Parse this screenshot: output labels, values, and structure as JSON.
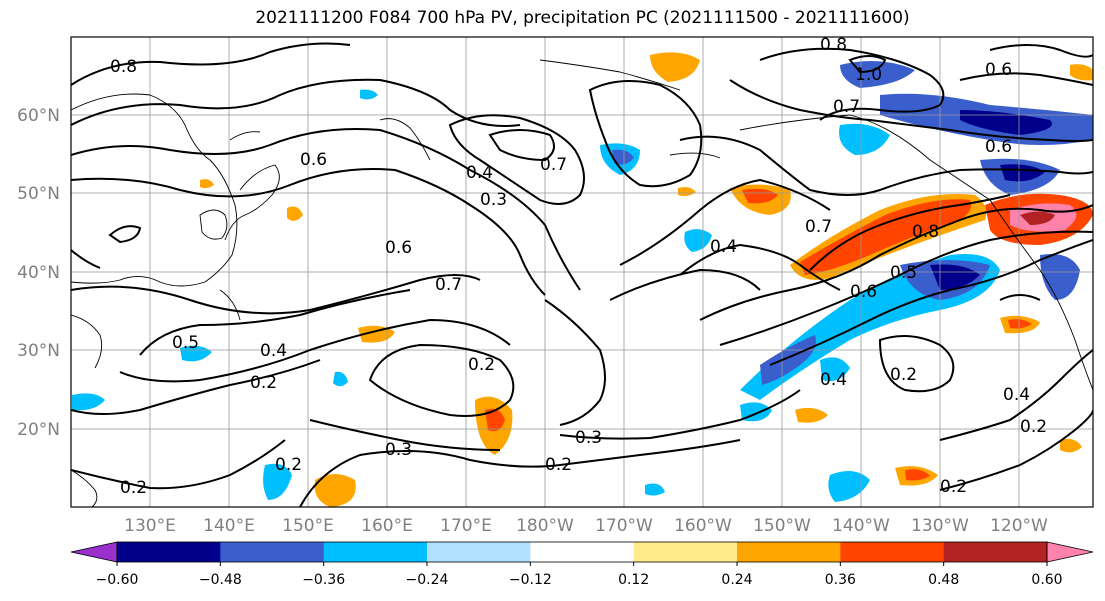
{
  "title": "2021111200 F084 700 hPa PV, precipitation PC (2021111500 - 2021111600)",
  "lat_labels": [
    "60°N",
    "50°N",
    "40°N",
    "30°N",
    "20°N"
  ],
  "lon_labels": [
    "130°E",
    "140°E",
    "150°E",
    "160°E",
    "170°E",
    "180°W",
    "170°W",
    "160°W",
    "150°W",
    "140°W",
    "130°W",
    "120°W"
  ],
  "colorbar": {
    "colors": [
      "#9932cc",
      "#00008b",
      "#3a5fcd",
      "#00bfff",
      "#b0e2ff",
      "#ffffff",
      "#ffec8b",
      "#ffa500",
      "#ff4500",
      "#b22222",
      "#ff82ab"
    ],
    "tick_labels": [
      "−0.60",
      "−0.48",
      "−0.36",
      "−0.24",
      "−0.12",
      "0.12",
      "0.24",
      "0.36",
      "0.48",
      "0.60"
    ]
  },
  "contour_labels": [
    "0.8",
    "0.8",
    "0.7",
    "0.7",
    "0.6",
    "0.6",
    "0.4",
    "0.3",
    "0.6",
    "0.7",
    "0.5",
    "0.4",
    "0.2",
    "0.2",
    "0.3",
    "0.3",
    "0.2",
    "0.2",
    "0.4",
    "0.7",
    "0.8",
    "0.6",
    "0.5",
    "0.4",
    "0.2",
    "0.2",
    "0.2",
    "0.4",
    "1.0",
    "0.6",
    "0.2"
  ],
  "shading_colors": {
    "negative_dark": "#00008b",
    "negative_mid": "#3a5fcd",
    "negative_light": "#00bfff",
    "positive_light": "#ffa500",
    "positive_mid": "#ff4500",
    "positive_dark": "#b22222",
    "positive_max": "#ff82ab"
  }
}
